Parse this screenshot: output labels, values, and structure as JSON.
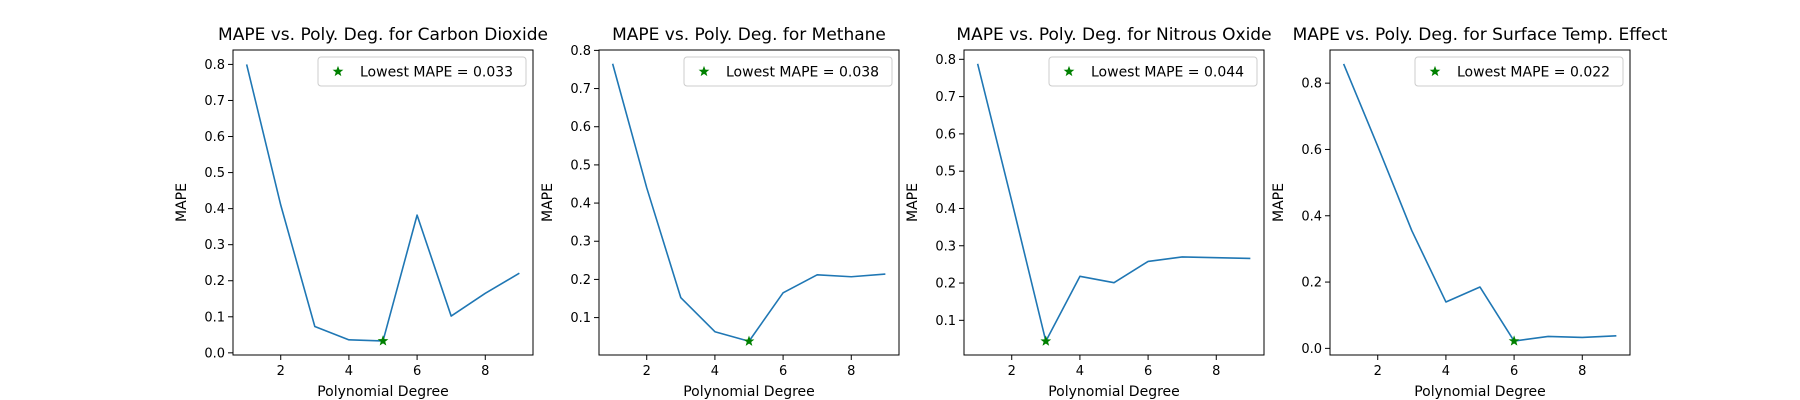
{
  "colors": {
    "line": "#1f77b4",
    "marker": "#008000",
    "axis": "#000000",
    "legend_border": "#cccccc"
  },
  "chart_data": [
    {
      "type": "line",
      "title": "MAPE vs. Poly. Deg. for Carbon Dioxide",
      "xlabel": "Polynomial Degree",
      "ylabel": "MAPE",
      "x": [
        1,
        2,
        3,
        4,
        5,
        6,
        7,
        8,
        9
      ],
      "values": [
        0.8,
        0.41,
        0.073,
        0.036,
        0.033,
        0.382,
        0.102,
        0.165,
        0.221
      ],
      "xlim": [
        0.6,
        9.4
      ],
      "ylim": [
        -0.006,
        0.84
      ],
      "xticks": [
        2,
        4,
        6,
        8
      ],
      "xtick_labels": [
        "2",
        "4",
        "6",
        "8"
      ],
      "yticks": [
        0.0,
        0.1,
        0.2,
        0.3,
        0.4,
        0.5,
        0.6,
        0.7,
        0.8
      ],
      "ytick_labels": [
        "0.0",
        "0.1",
        "0.2",
        "0.3",
        "0.4",
        "0.5",
        "0.6",
        "0.7",
        "0.8"
      ],
      "min_point": {
        "x": 5,
        "y": 0.033
      },
      "legend": {
        "label": "Lowest MAPE = 0.033",
        "position": "upper right"
      }
    },
    {
      "type": "line",
      "title": "MAPE vs. Poly. Deg. for Methane",
      "xlabel": "Polynomial Degree",
      "ylabel": "MAPE",
      "x": [
        1,
        2,
        3,
        4,
        5,
        6,
        7,
        8,
        9
      ],
      "values": [
        0.765,
        0.44,
        0.152,
        0.063,
        0.038,
        0.165,
        0.212,
        0.207,
        0.214
      ],
      "xlim": [
        0.6,
        9.4
      ],
      "ylim": [
        0.002,
        0.801
      ],
      "xticks": [
        2,
        4,
        6,
        8
      ],
      "xtick_labels": [
        "2",
        "4",
        "6",
        "8"
      ],
      "yticks": [
        0.1,
        0.2,
        0.3,
        0.4,
        0.5,
        0.6,
        0.7,
        0.8
      ],
      "ytick_labels": [
        "0.1",
        "0.2",
        "0.3",
        "0.4",
        "0.5",
        "0.6",
        "0.7",
        "0.8"
      ],
      "min_point": {
        "x": 5,
        "y": 0.038
      },
      "legend": {
        "label": "Lowest MAPE = 0.038",
        "position": "upper right"
      }
    },
    {
      "type": "line",
      "title": "MAPE vs. Poly. Deg. for Nitrous Oxide",
      "xlabel": "Polynomial Degree",
      "ylabel": "MAPE",
      "x": [
        1,
        2,
        3,
        4,
        5,
        6,
        7,
        8,
        9
      ],
      "values": [
        0.788,
        0.42,
        0.044,
        0.218,
        0.201,
        0.258,
        0.27,
        0.268,
        0.266
      ],
      "xlim": [
        0.6,
        9.4
      ],
      "ylim": [
        0.007,
        0.825
      ],
      "xticks": [
        2,
        4,
        6,
        8
      ],
      "xtick_labels": [
        "2",
        "4",
        "6",
        "8"
      ],
      "yticks": [
        0.1,
        0.2,
        0.3,
        0.4,
        0.5,
        0.6,
        0.7,
        0.8
      ],
      "ytick_labels": [
        "0.1",
        "0.2",
        "0.3",
        "0.4",
        "0.5",
        "0.6",
        "0.7",
        "0.8"
      ],
      "min_point": {
        "x": 3,
        "y": 0.044
      },
      "legend": {
        "label": "Lowest MAPE = 0.044",
        "position": "upper right"
      }
    },
    {
      "type": "line",
      "title": "MAPE vs. Poly. Deg. for Surface Temp. Effect",
      "xlabel": "Polynomial Degree",
      "ylabel": "MAPE",
      "x": [
        1,
        2,
        3,
        4,
        5,
        6,
        7,
        8,
        9
      ],
      "values": [
        0.858,
        0.61,
        0.355,
        0.14,
        0.185,
        0.022,
        0.036,
        0.033,
        0.038
      ],
      "xlim": [
        0.6,
        9.4
      ],
      "ylim": [
        -0.02,
        0.9
      ],
      "xticks": [
        2,
        4,
        6,
        8
      ],
      "xtick_labels": [
        "2",
        "4",
        "6",
        "8"
      ],
      "yticks": [
        0.0,
        0.2,
        0.4,
        0.6,
        0.8
      ],
      "ytick_labels": [
        "0.0",
        "0.2",
        "0.4",
        "0.6",
        "0.8"
      ],
      "min_point": {
        "x": 6,
        "y": 0.022
      },
      "legend": {
        "label": "Lowest MAPE = 0.022",
        "position": "upper right"
      }
    }
  ]
}
